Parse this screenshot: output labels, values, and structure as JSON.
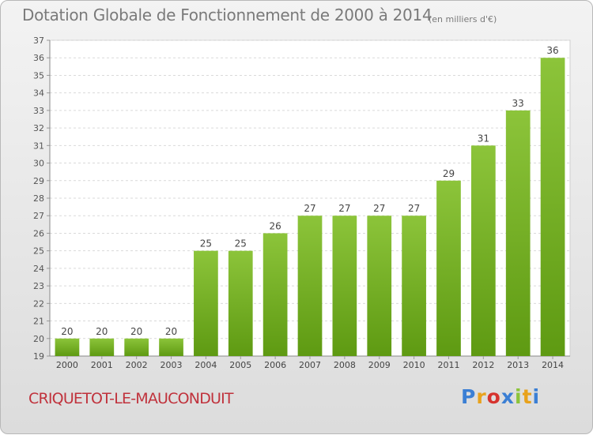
{
  "chart_data": {
    "type": "bar",
    "title": "Dotation Globale de Fonctionnement de 2000 à 2014",
    "subtitle": "(en milliers d'€)",
    "categories": [
      "2000",
      "2001",
      "2002",
      "2003",
      "2004",
      "2005",
      "2006",
      "2007",
      "2008",
      "2009",
      "2010",
      "2011",
      "2012",
      "2013",
      "2014"
    ],
    "values": [
      20,
      20,
      20,
      20,
      25,
      25,
      26,
      27,
      27,
      27,
      27,
      29,
      31,
      33,
      36
    ],
    "xlabel": "",
    "ylabel": "",
    "ylim": [
      19,
      37
    ],
    "yticks": [
      19,
      20,
      21,
      22,
      23,
      24,
      25,
      26,
      27,
      28,
      29,
      30,
      31,
      32,
      33,
      34,
      35,
      36,
      37
    ],
    "grid": true,
    "legend": "none",
    "bar_color": "#8cc43a",
    "bar_color_dark": "#5e9a12"
  },
  "footer": {
    "commune": "CRIQUETOT-LE-MAUCONDUIT",
    "logo_letters": [
      {
        "char": "P",
        "color": "#3b7fd4"
      },
      {
        "char": "r",
        "color": "#e8a21c"
      },
      {
        "char": "o",
        "color": "#d6332e"
      },
      {
        "char": "x",
        "color": "#3b7fd4"
      },
      {
        "char": "i",
        "color": "#8cc43a"
      },
      {
        "char": "t",
        "color": "#e8a21c"
      },
      {
        "char": "i",
        "color": "#3b7fd4"
      }
    ]
  }
}
